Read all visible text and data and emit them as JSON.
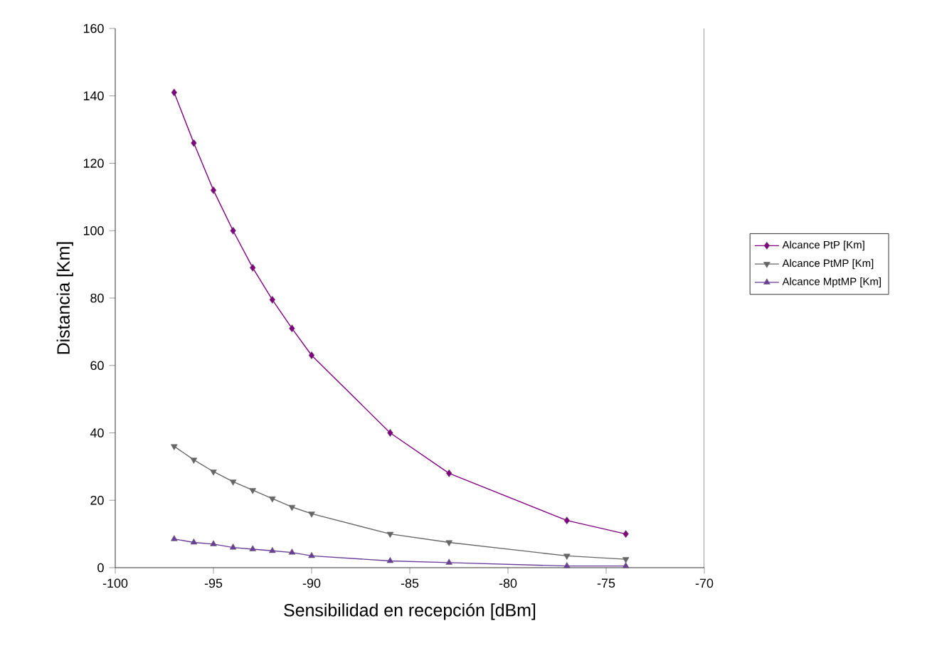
{
  "chart_data": {
    "type": "line",
    "xlabel": "Sensibilidad en recepción [dBm]",
    "ylabel": "Distancia [Km]",
    "x": [
      -97,
      -96,
      -95,
      -94,
      -93,
      -92,
      -91,
      -90,
      -86,
      -83,
      -77,
      -74
    ],
    "series": [
      {
        "name": "Alcance PtP [Km]",
        "color": "#800080",
        "marker": "diamond",
        "values": [
          141,
          126,
          112,
          100,
          89,
          79.5,
          71,
          63,
          40,
          28,
          14,
          10
        ]
      },
      {
        "name": "Alcance PtMP [Km]",
        "color": "#666666",
        "marker": "triangle down",
        "values": [
          36,
          32,
          28.5,
          25.5,
          23,
          20.5,
          18,
          16,
          10,
          7.5,
          3.5,
          2.5
        ]
      },
      {
        "name": "Alcance MptMP [Km]",
        "color": "#6a3d9a",
        "marker": "triangle",
        "values": [
          8.5,
          7.5,
          7,
          6,
          5.5,
          5,
          4.5,
          3.5,
          2,
          1.5,
          0.5,
          0.5
        ]
      }
    ],
    "xlim": [
      -100,
      -70
    ],
    "xticks": [
      -100,
      -95,
      -90,
      -85,
      -80,
      -75,
      -70
    ],
    "ylim": [
      0,
      160
    ],
    "yticks": [
      0,
      20,
      40,
      60,
      80,
      100,
      120,
      140,
      160
    ],
    "grid": false,
    "legend": "right",
    "line_style": "solid"
  }
}
